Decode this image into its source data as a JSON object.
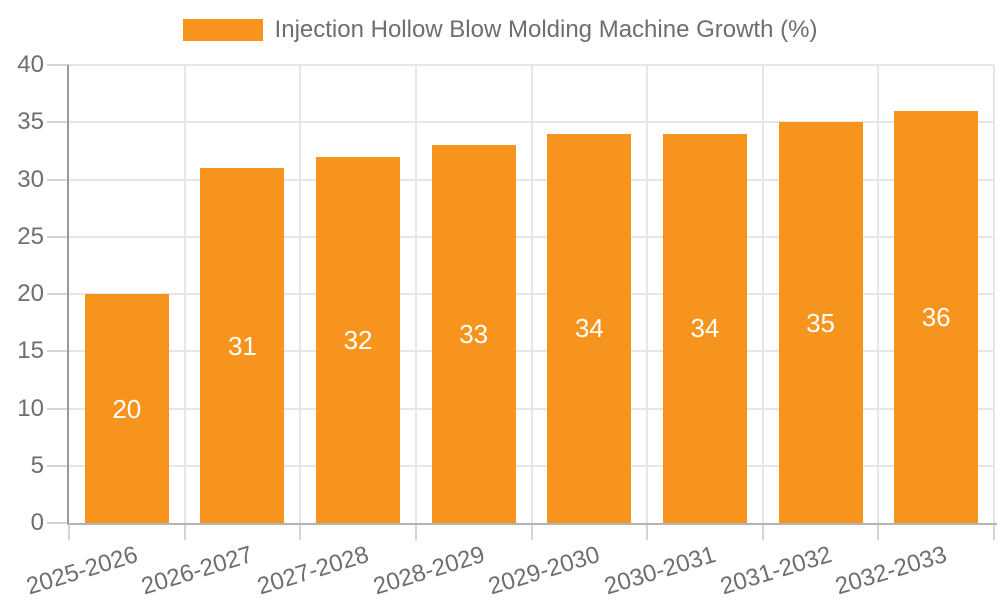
{
  "legend": {
    "label": "Injection Hollow Blow Molding Machine Growth (%)"
  },
  "colors": {
    "bar": "#f7941e",
    "grid": "#e6e6e6",
    "tick": "#d4d4d4",
    "y_axis": "#9a9a9a",
    "x_axis": "#b3b3b3",
    "axis_text": "#6e6e6e",
    "bar_label_text": "#ffffff",
    "background": "#ffffff"
  },
  "chart_data": {
    "type": "bar",
    "title": "Injection Hollow Blow Molding Machine Growth (%)",
    "categories": [
      "2025-2026",
      "2026-2027",
      "2027-2028",
      "2028-2029",
      "2029-2030",
      "2030-2031",
      "2031-2032",
      "2032-2033"
    ],
    "values": [
      20,
      31,
      32,
      33,
      34,
      34,
      35,
      36
    ],
    "xlabel": "",
    "ylabel": "",
    "ylim": [
      0,
      40
    ],
    "y_tick_step": 5,
    "grid": "both",
    "legend_position": "top-center",
    "bar_value_labels": "inside-center",
    "x_label_rotation_deg": -17
  }
}
